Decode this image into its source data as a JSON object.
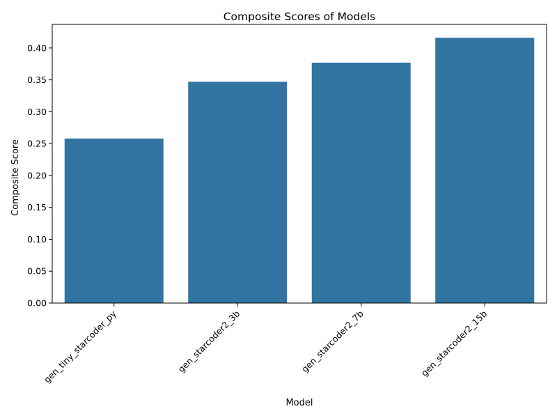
{
  "chart_data": {
    "type": "bar",
    "title": "Composite Scores of Models",
    "xlabel": "Model",
    "ylabel": "Composite Score",
    "categories": [
      "gen_tiny_starcoder_py",
      "gen_starcoder2_3b",
      "gen_starcoder2_7b",
      "gen_starcoder2_15b"
    ],
    "values": [
      0.258,
      0.347,
      0.377,
      0.416
    ],
    "ylim": [
      0,
      0.437
    ],
    "yticks": [
      "0.00",
      "0.05",
      "0.10",
      "0.15",
      "0.20",
      "0.25",
      "0.30",
      "0.35",
      "0.40"
    ],
    "grid": false,
    "bar_color": "#3274a1"
  }
}
